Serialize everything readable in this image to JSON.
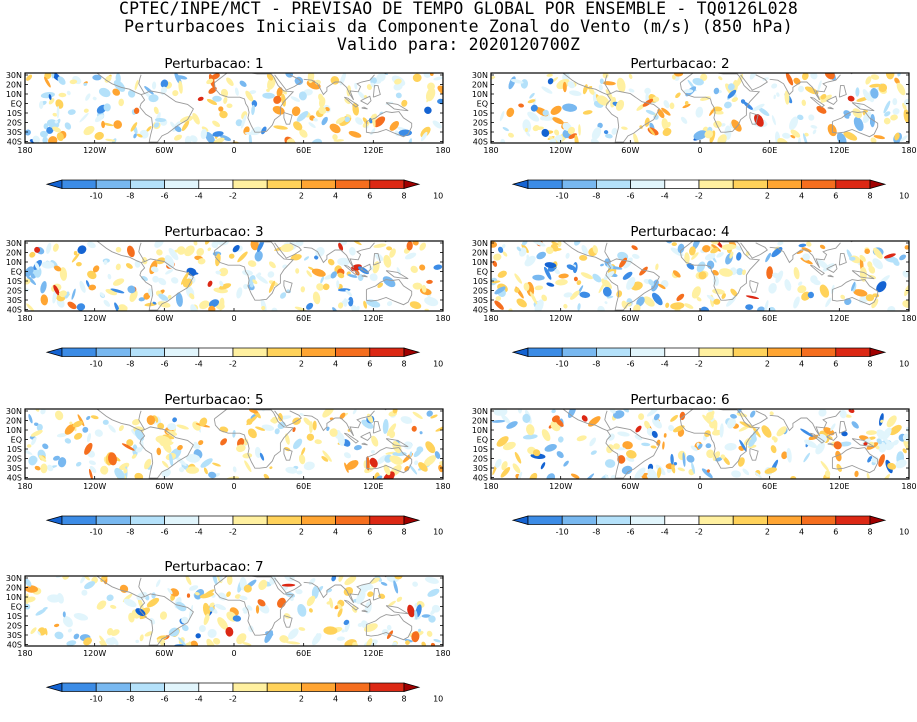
{
  "header": {
    "line1": "CPTEC/INPE/MCT - PREVISAO DE TEMPO GLOBAL POR ENSEMBLE - TQ0126L028",
    "line2": "Perturbacoes Iniciais da Componente Zonal do Vento (m/s) (850 hPa)",
    "line3": "Valido para: 2020120700Z"
  },
  "lat_labels": [
    "30N",
    "20N",
    "10N",
    "EQ",
    "10S",
    "20S",
    "30S",
    "40S"
  ],
  "lon_labels": [
    "180",
    "120W",
    "60W",
    "0",
    "60E",
    "120E",
    "180"
  ],
  "colorbar": {
    "labels": [
      "-10",
      "-8",
      "-6",
      "-4",
      "-2",
      "2",
      "4",
      "6",
      "8",
      "10"
    ],
    "colors": [
      "#1463d2",
      "#3c8ce6",
      "#78b8f0",
      "#b4e1fa",
      "#e1f5fc",
      "#ffffff",
      "#fff0a0",
      "#ffd25a",
      "#ffa532",
      "#f56e1e",
      "#dc2814",
      "#a00000"
    ]
  },
  "panels": [
    {
      "title": "Perturbacao: 1"
    },
    {
      "title": "Perturbacao: 2"
    },
    {
      "title": "Perturbacao: 3"
    },
    {
      "title": "Perturbacao: 4"
    },
    {
      "title": "Perturbacao: 5"
    },
    {
      "title": "Perturbacao: 6"
    },
    {
      "title": "Perturbacao: 7"
    }
  ]
}
